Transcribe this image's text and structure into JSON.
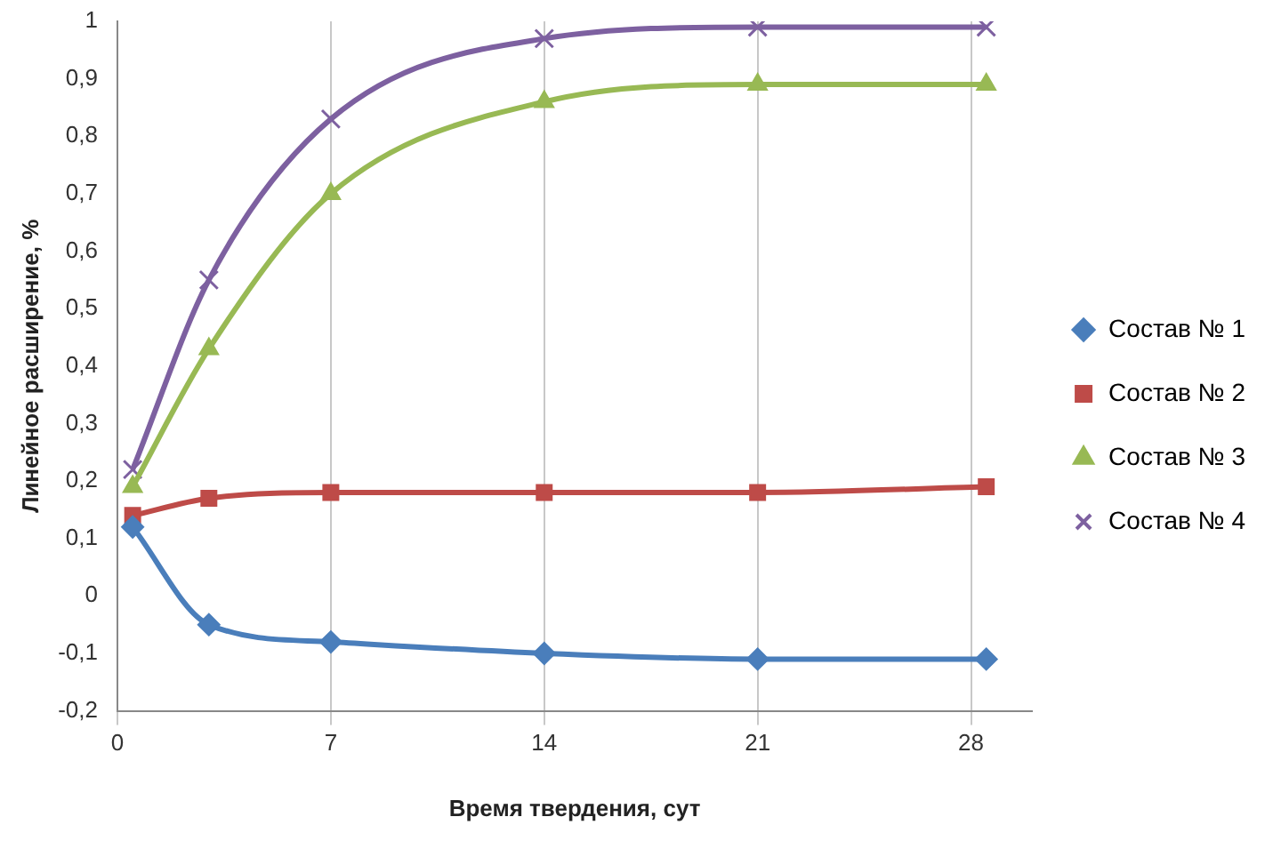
{
  "chart_data": {
    "type": "line",
    "xlabel": "Время твердения, сут",
    "ylabel": "Линейное расширение, %",
    "xlim": [
      0,
      30
    ],
    "xticks": [
      0,
      7,
      14,
      21,
      28
    ],
    "ylim": [
      -0.2,
      1
    ],
    "yticks": [
      {
        "value": -0.2,
        "label": "-0,2"
      },
      {
        "value": -0.1,
        "label": "-0,1"
      },
      0,
      {
        "value": 0.1,
        "label": "0,1"
      },
      {
        "value": 0.2,
        "label": "0,2"
      },
      {
        "value": 0.3,
        "label": "0,3"
      },
      {
        "value": 0.4,
        "label": "0,4"
      },
      {
        "value": 0.5,
        "label": "0,5"
      },
      {
        "value": 0.6,
        "label": "0,6"
      },
      {
        "value": 0.7,
        "label": "0,7"
      },
      {
        "value": 0.8,
        "label": "0,8"
      },
      {
        "value": 0.9,
        "label": "0,9"
      },
      1
    ],
    "x": [
      0.5,
      3,
      7,
      14,
      21,
      28.5
    ],
    "grid": "x",
    "legend": "right",
    "series": [
      {
        "name": "Состав № 1",
        "color": "#4a7ebb",
        "marker": "diamond",
        "values": [
          0.12,
          -0.05,
          -0.08,
          -0.1,
          -0.11,
          -0.11
        ]
      },
      {
        "name": "Состав № 2",
        "color": "#be4b48",
        "marker": "square",
        "values": [
          0.14,
          0.17,
          0.18,
          0.18,
          0.18,
          0.19
        ]
      },
      {
        "name": "Состав № 3",
        "color": "#98b954",
        "marker": "triangle",
        "values": [
          0.19,
          0.43,
          0.7,
          0.86,
          0.89,
          0.89
        ]
      },
      {
        "name": "Состав № 4",
        "color": "#7d60a0",
        "marker": "cross",
        "values": [
          0.22,
          0.55,
          0.83,
          0.97,
          0.99,
          0.99
        ]
      }
    ]
  }
}
